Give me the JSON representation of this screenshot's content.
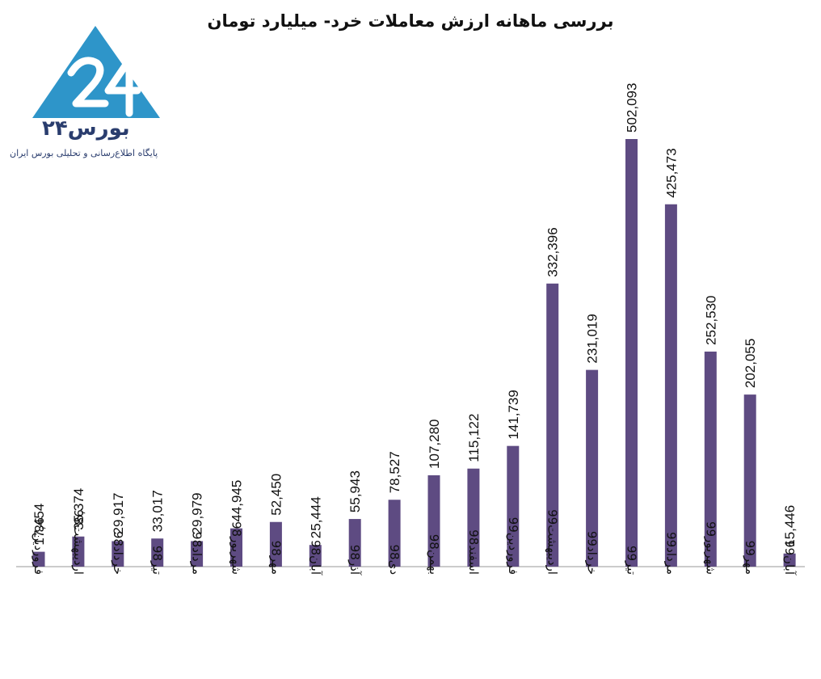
{
  "header": {
    "title": "بررسی ماهانه ارزش معاملات خرد- میلیارد تومان"
  },
  "logo": {
    "name": "بورس۲۴",
    "subtitle": "پایگاه اطلاع‌رسانی و تحلیلی بورس ایران",
    "mark_text": "24",
    "color": "#2e95c9"
  },
  "chart_data": {
    "type": "bar",
    "title": "بررسی ماهانه ارزش معاملات خرد- میلیارد تومان",
    "xlabel": "",
    "ylabel": "",
    "categories": [
      "فروردین98",
      "اردیبهشت98",
      "خرداد98",
      "تیر98",
      "مرداد98",
      "شهریور98",
      "مهر98",
      "آبان98",
      "آذر98",
      "دی98",
      "بهمن98",
      "اسفند98",
      "فروردین99",
      "اردیبهشت99",
      "خرداد99",
      "تیر99",
      "مرداد99",
      "شهریور99",
      "مهر99",
      "آبان99"
    ],
    "values": [
      17454,
      35374,
      29917,
      33017,
      29979,
      44945,
      52450,
      25444,
      55943,
      78527,
      107280,
      115122,
      141739,
      332396,
      231019,
      502093,
      425473,
      252530,
      202055,
      15446
    ],
    "value_labels": [
      "17,454",
      "35,374",
      "29,917",
      "33,017",
      "29,979",
      "44,945",
      "52,450",
      "25,444",
      "55,943",
      "78,527",
      "107,280",
      "115,122",
      "141,739",
      "332,396",
      "231,019",
      "502,093",
      "425,473",
      "252,530",
      "202,055",
      "15,446"
    ],
    "ylim": [
      0,
      502093
    ],
    "grid": false,
    "legend": "none",
    "bar_color": "#5e4b82",
    "axis_color": "#999999"
  }
}
